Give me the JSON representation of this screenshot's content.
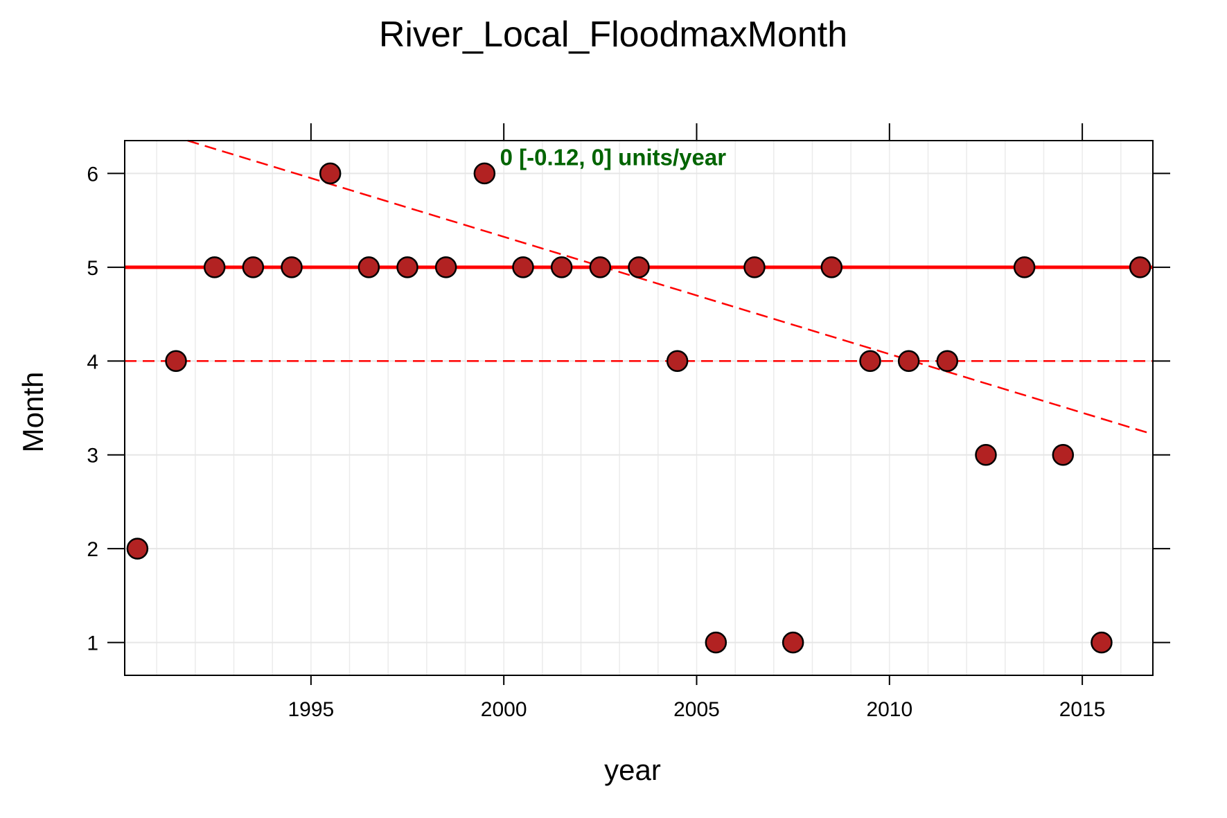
{
  "chart_data": {
    "type": "scatter",
    "title": "River_Local_FloodmaxMonth",
    "xlabel": "year",
    "ylabel": "Month",
    "xlim": [
      1990.17,
      2016.83
    ],
    "ylim": [
      0.65,
      6.35
    ],
    "x_ticks": [
      "1995",
      "2000",
      "2005",
      "2010",
      "2015"
    ],
    "y_ticks": [
      "1",
      "2",
      "3",
      "4",
      "5",
      "6"
    ],
    "grid": true,
    "points": [
      {
        "x": 1990.5,
        "y": 2
      },
      {
        "x": 1991.5,
        "y": 4
      },
      {
        "x": 1992.5,
        "y": 5
      },
      {
        "x": 1993.5,
        "y": 5
      },
      {
        "x": 1994.5,
        "y": 5
      },
      {
        "x": 1995.5,
        "y": 6
      },
      {
        "x": 1996.5,
        "y": 5
      },
      {
        "x": 1997.5,
        "y": 5
      },
      {
        "x": 1998.5,
        "y": 5
      },
      {
        "x": 1999.5,
        "y": 6
      },
      {
        "x": 2000.5,
        "y": 5
      },
      {
        "x": 2001.5,
        "y": 5
      },
      {
        "x": 2002.5,
        "y": 5
      },
      {
        "x": 2003.5,
        "y": 5
      },
      {
        "x": 2004.5,
        "y": 4
      },
      {
        "x": 2005.5,
        "y": 1
      },
      {
        "x": 2006.5,
        "y": 5
      },
      {
        "x": 2007.5,
        "y": 1
      },
      {
        "x": 2008.5,
        "y": 5
      },
      {
        "x": 2009.5,
        "y": 4
      },
      {
        "x": 2010.5,
        "y": 4
      },
      {
        "x": 2011.5,
        "y": 4
      },
      {
        "x": 2012.5,
        "y": 3
      },
      {
        "x": 2013.5,
        "y": 5
      },
      {
        "x": 2014.5,
        "y": 3
      },
      {
        "x": 2015.5,
        "y": 1
      },
      {
        "x": 2016.5,
        "y": 5
      }
    ],
    "reference_lines": [
      {
        "type": "hline",
        "y": 5,
        "style": "solid",
        "color": "#ff0000"
      },
      {
        "type": "hline",
        "y": 4,
        "style": "dashed",
        "color": "#ff0000"
      },
      {
        "type": "segment",
        "x1": 1991.8,
        "y1": 6.35,
        "x2": 2016.83,
        "y2": 3.22,
        "style": "dashed",
        "color": "#ff0000"
      }
    ],
    "annotation": {
      "text": "0 [-0.12, 0] units/year",
      "x": 1999.9,
      "y": 6.17,
      "color": "#006400"
    },
    "point_color": "#b22222",
    "point_edge_color": "#000000"
  }
}
